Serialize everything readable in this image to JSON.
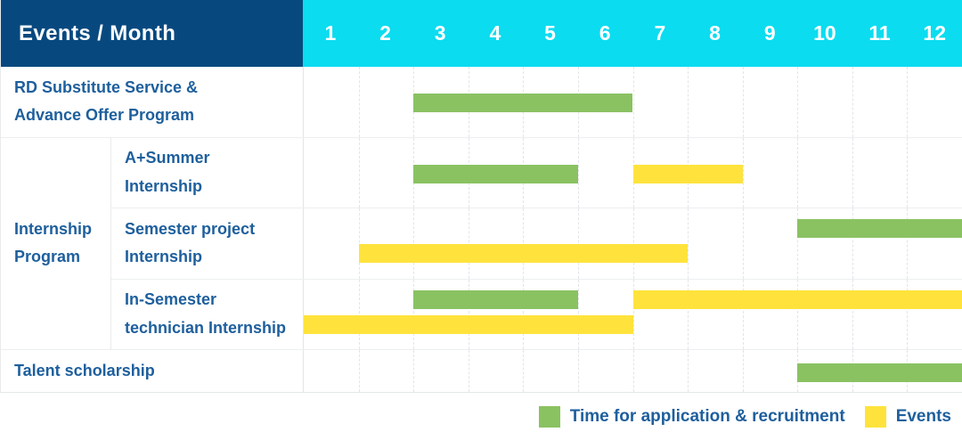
{
  "chart_data": {
    "type": "bar",
    "variant": "gantt",
    "title": "Events / Month",
    "x_axis": {
      "unit": "month",
      "ticks": [
        "1",
        "2",
        "3",
        "4",
        "5",
        "6",
        "7",
        "8",
        "9",
        "10",
        "11",
        "12"
      ],
      "range": [
        1,
        12
      ]
    },
    "colors": {
      "recruitment": "#8ac262",
      "events": "#ffe33c",
      "header_bg": "#07497f",
      "months_bg": "#0bdcf0",
      "label_text": "#1e5f9d"
    },
    "legend": [
      {
        "key": "recruitment",
        "label": "Time for application & recruitment",
        "color": "#8ac262"
      },
      {
        "key": "events",
        "label": "Events",
        "color": "#ffe33c"
      }
    ],
    "sections": [
      {
        "group": null,
        "rows": [
          {
            "label": "RD Substitute Service &\nAdvance Offer Program",
            "bars": [
              {
                "series": "recruitment",
                "start_month": 3,
                "end_month": 6,
                "lane": "center"
              }
            ]
          }
        ]
      },
      {
        "group": "Internship\nProgram",
        "rows": [
          {
            "label": "A+Summer\nInternship",
            "bars": [
              {
                "series": "recruitment",
                "start_month": 3,
                "end_month": 5,
                "lane": "center"
              },
              {
                "series": "events",
                "start_month": 7,
                "end_month": 8,
                "lane": "center"
              }
            ]
          },
          {
            "label": "Semester project\nInternship",
            "bars": [
              {
                "series": "recruitment",
                "start_month": 10,
                "end_month": 12,
                "lane": "top"
              },
              {
                "series": "events",
                "start_month": 2,
                "end_month": 7,
                "lane": "bottom"
              }
            ]
          },
          {
            "label": "In-Semester\ntechnician Internship",
            "bars": [
              {
                "series": "recruitment",
                "start_month": 3,
                "end_month": 5,
                "lane": "top"
              },
              {
                "series": "events",
                "start_month": 7,
                "end_month": 12,
                "lane": "top"
              },
              {
                "series": "events",
                "start_month": 1,
                "end_month": 6,
                "lane": "bottom"
              }
            ]
          }
        ]
      },
      {
        "group": null,
        "rows": [
          {
            "label": "Talent scholarship",
            "bars": [
              {
                "series": "recruitment",
                "start_month": 10,
                "end_month": 12,
                "lane": "center"
              }
            ]
          }
        ]
      }
    ]
  }
}
